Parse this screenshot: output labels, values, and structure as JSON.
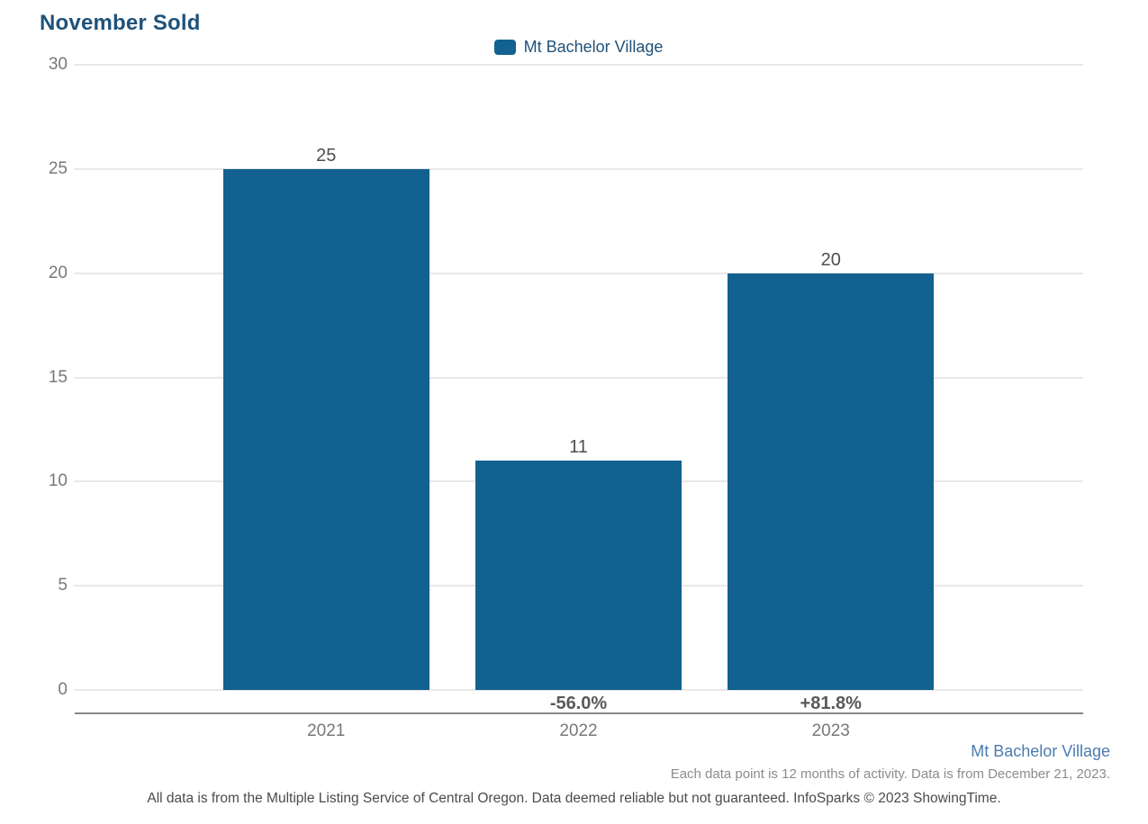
{
  "title": "November Sold",
  "legend": {
    "label": "Mt Bachelor Village"
  },
  "footer": {
    "series_label": "Mt Bachelor Village",
    "note": "Each data point is 12 months of activity. Data is from December 21, 2023.",
    "disclaimer": "All data is from the Multiple Listing Service of Central Oregon. Data deemed reliable but not guaranteed. InfoSparks © 2023 ShowingTime."
  },
  "colors": {
    "bar": "#126190",
    "title_text": "#1F527A",
    "legend_text": "#1F527A",
    "series_link": "#4A7CB0",
    "grid": "#E8E8E8",
    "axis": "#85878A",
    "tick_text": "#77787B",
    "value_text": "#4D4E50",
    "change_text": "#58595B"
  },
  "chart_data": {
    "type": "bar",
    "title": "November Sold",
    "series_name": "Mt Bachelor Village",
    "categories": [
      "2021",
      "2022",
      "2023"
    ],
    "values": [
      25,
      11,
      20
    ],
    "value_labels": [
      "25",
      "11",
      "20"
    ],
    "change_labels": [
      "",
      "-56.0%",
      "+81.8%"
    ],
    "yticks": [
      0,
      5,
      10,
      15,
      20,
      25,
      30
    ],
    "ylim": [
      0,
      30
    ],
    "grid": true,
    "legend_position": "top-center"
  }
}
